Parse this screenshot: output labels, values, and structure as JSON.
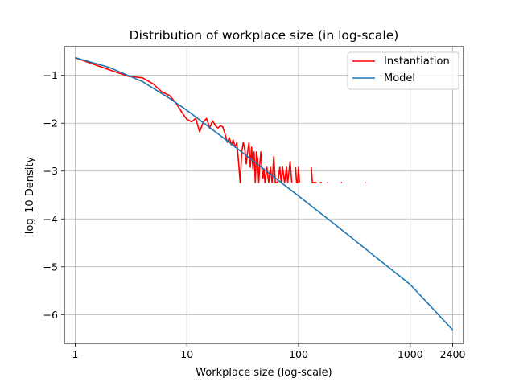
{
  "chart_data": {
    "type": "line",
    "title": "Distribution of workplace size (in log-scale)",
    "xlabel": "Workplace size (log-scale)",
    "ylabel": "log_10 Density",
    "xscale": "log",
    "xlim": [
      0.8,
      3000
    ],
    "ylim": [
      -6.6,
      -0.4
    ],
    "xticks": [
      1,
      10,
      100,
      1000,
      2400
    ],
    "xtick_labels": [
      "1",
      "10",
      "100",
      "1000",
      "2400"
    ],
    "yticks": [
      -6,
      -5,
      -4,
      -3,
      -2,
      -1
    ],
    "ytick_labels": [
      "−6",
      "−5",
      "−4",
      "−3",
      "−2",
      "−1"
    ],
    "grid": true,
    "legend_position": "top-right",
    "series": [
      {
        "name": "Instantiation",
        "color": "#ff0000",
        "segments": [
          [
            [
              1,
              -0.63
            ],
            [
              2,
              -0.88
            ],
            [
              3,
              -1.02
            ],
            [
              4,
              -1.05
            ],
            [
              5,
              -1.18
            ],
            [
              6,
              -1.35
            ],
            [
              7,
              -1.42
            ],
            [
              8,
              -1.58
            ],
            [
              9,
              -1.77
            ],
            [
              10,
              -1.92
            ],
            [
              11,
              -1.97
            ],
            [
              12,
              -1.9
            ],
            [
              13,
              -2.18
            ],
            [
              14,
              -1.98
            ],
            [
              15,
              -1.9
            ],
            [
              16,
              -2.1
            ],
            [
              17,
              -1.95
            ],
            [
              18,
              -2.05
            ],
            [
              19,
              -2.1
            ],
            [
              20,
              -2.05
            ],
            [
              21,
              -2.08
            ],
            [
              22,
              -2.23
            ],
            [
              23,
              -2.4
            ],
            [
              24,
              -2.3
            ],
            [
              25,
              -2.45
            ],
            [
              26,
              -2.35
            ],
            [
              27,
              -2.5
            ],
            [
              28,
              -2.4
            ],
            [
              29,
              -2.8
            ],
            [
              30,
              -3.24
            ],
            [
              31,
              -2.6
            ],
            [
              32,
              -2.4
            ],
            [
              33,
              -2.55
            ],
            [
              34,
              -2.85
            ],
            [
              35,
              -2.6
            ],
            [
              36,
              -2.4
            ],
            [
              37,
              -2.92
            ],
            [
              38,
              -2.5
            ],
            [
              39,
              -2.95
            ],
            [
              40,
              -2.6
            ],
            [
              41,
              -3.24
            ],
            [
              42,
              -2.6
            ],
            [
              43,
              -2.75
            ],
            [
              44,
              -3.24
            ],
            [
              45,
              -2.85
            ],
            [
              46,
              -2.6
            ],
            [
              47,
              -2.95
            ],
            [
              48,
              -3.15
            ],
            [
              49,
              -2.95
            ],
            [
              50,
              -3.24
            ],
            [
              52,
              -2.92
            ],
            [
              54,
              -3.24
            ],
            [
              56,
              -2.92
            ],
            [
              58,
              -3.24
            ],
            [
              60,
              -2.7
            ],
            [
              62,
              -3.24
            ],
            [
              65,
              -3.24
            ],
            [
              68,
              -2.92
            ],
            [
              70,
              -3.24
            ],
            [
              72,
              -2.92
            ],
            [
              75,
              -3.24
            ],
            [
              78,
              -2.92
            ],
            [
              80,
              -3.24
            ],
            [
              84,
              -2.8
            ],
            [
              87,
              -3.24
            ]
          ],
          [
            [
              94,
              -2.92
            ],
            [
              96,
              -3.24
            ],
            [
              98,
              -3.24
            ],
            [
              100,
              -2.92
            ],
            [
              102,
              -3.24
            ]
          ],
          [
            [
              130,
              -2.92
            ],
            [
              133,
              -3.24
            ],
            [
              140,
              -3.24
            ],
            [
              145,
              -3.24
            ]
          ],
          [
            [
              155,
              -3.24
            ],
            [
              162,
              -3.24
            ]
          ],
          [
            [
              180,
              -3.24
            ],
            [
              185,
              -3.24
            ]
          ],
          [
            [
              240,
              -3.24
            ],
            [
              245,
              -3.24
            ]
          ],
          [
            [
              395,
              -3.24
            ],
            [
              400,
              -3.24
            ]
          ]
        ]
      },
      {
        "name": "Model",
        "color": "#1f77b4",
        "segments": [
          [
            [
              1,
              -0.63
            ],
            [
              2,
              -0.83
            ],
            [
              4,
              -1.13
            ],
            [
              7,
              -1.48
            ],
            [
              10,
              -1.73
            ],
            [
              20,
              -2.26
            ],
            [
              40,
              -2.8
            ],
            [
              100,
              -3.52
            ],
            [
              200,
              -4.07
            ],
            [
              500,
              -4.81
            ],
            [
              1000,
              -5.37
            ],
            [
              2400,
              -6.32
            ]
          ]
        ]
      }
    ]
  }
}
